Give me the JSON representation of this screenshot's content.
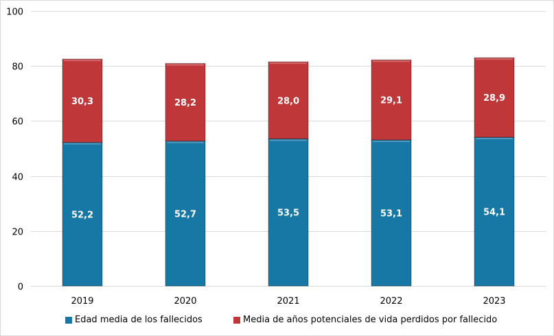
{
  "chart_data": {
    "type": "bar",
    "stacked": true,
    "categories": [
      "2019",
      "2020",
      "2021",
      "2022",
      "2023"
    ],
    "series": [
      {
        "name": "Edad media de los fallecidos",
        "values": [
          52.2,
          52.7,
          53.5,
          53.1,
          54.1
        ],
        "labels": [
          "52,2",
          "52,7",
          "53,5",
          "53,1",
          "54,1"
        ],
        "color": "#1778a6"
      },
      {
        "name": "Media de años potenciales de vida perdidos por fallecido",
        "values": [
          30.3,
          28.2,
          28.0,
          29.1,
          28.9
        ],
        "labels": [
          "30,3",
          "28,2",
          "28,0",
          "29,1",
          "28,9"
        ],
        "color": "#c0373a"
      }
    ],
    "ylim": [
      0,
      100
    ],
    "yticks": [
      "0",
      "20",
      "40",
      "60",
      "80",
      "100"
    ],
    "grid": true,
    "legend": "bottom",
    "title": "",
    "xlabel": "",
    "ylabel": ""
  }
}
